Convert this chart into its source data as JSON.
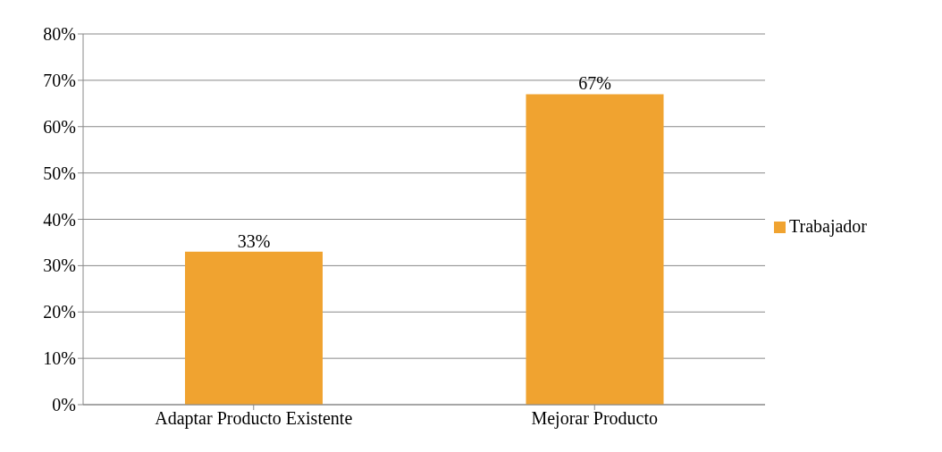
{
  "chart_data": {
    "type": "bar",
    "categories": [
      "Adaptar Producto Existente",
      "Mejorar Producto"
    ],
    "series": [
      {
        "name": "Trabajador",
        "color": "#f0a330",
        "values": [
          33,
          67
        ],
        "value_labels": [
          "33%",
          "67%"
        ]
      }
    ],
    "ylim": [
      0,
      80
    ],
    "yticks": [
      {
        "value": 0,
        "label": "0%"
      },
      {
        "value": 10,
        "label": "10%"
      },
      {
        "value": 20,
        "label": "20%"
      },
      {
        "value": 30,
        "label": "30%"
      },
      {
        "value": 40,
        "label": "40%"
      },
      {
        "value": 50,
        "label": "50%"
      },
      {
        "value": 60,
        "label": "60%"
      },
      {
        "value": 70,
        "label": "70%"
      },
      {
        "value": 80,
        "label": "80%"
      }
    ],
    "grid": "y",
    "legend": "right"
  }
}
